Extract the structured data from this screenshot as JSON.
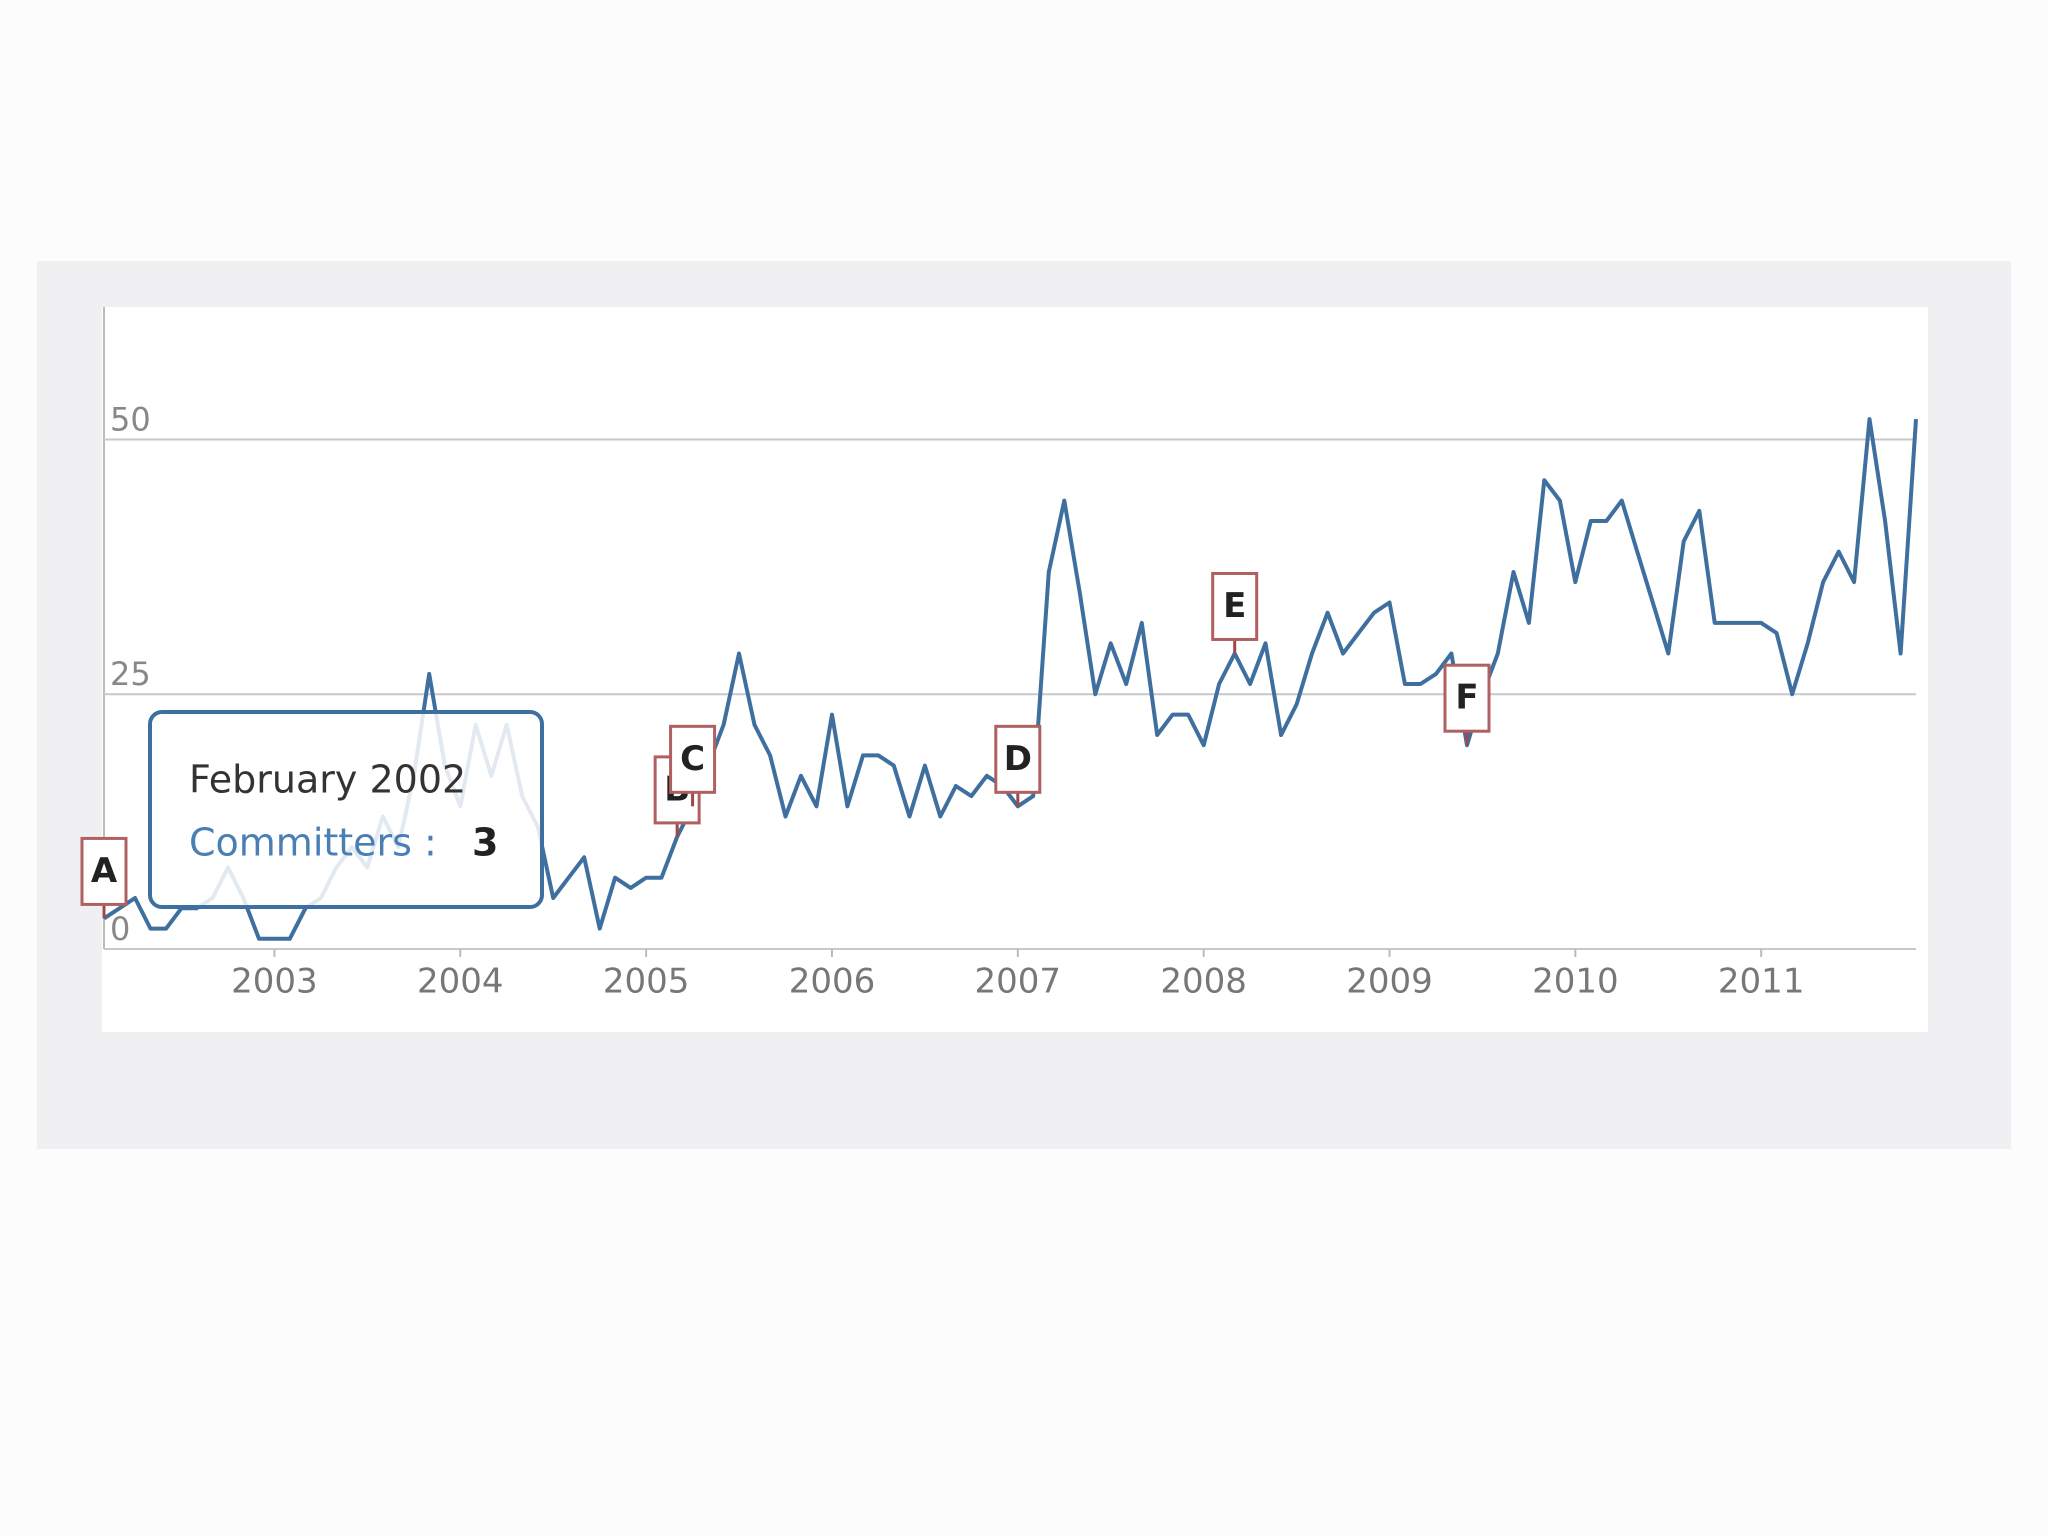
{
  "chart_data": {
    "type": "line",
    "x": [
      2002.083,
      2002.167,
      2002.25,
      2002.333,
      2002.417,
      2002.5,
      2002.583,
      2002.667,
      2002.75,
      2002.833,
      2002.917,
      2003.0,
      2003.083,
      2003.167,
      2003.25,
      2003.333,
      2003.417,
      2003.5,
      2003.583,
      2003.667,
      2003.75,
      2003.833,
      2003.917,
      2004.0,
      2004.083,
      2004.167,
      2004.25,
      2004.333,
      2004.417,
      2004.5,
      2004.583,
      2004.667,
      2004.75,
      2004.833,
      2004.917,
      2005.0,
      2005.083,
      2005.167,
      2005.25,
      2005.333,
      2005.417,
      2005.5,
      2005.583,
      2005.667,
      2005.75,
      2005.833,
      2005.917,
      2006.0,
      2006.083,
      2006.167,
      2006.25,
      2006.333,
      2006.417,
      2006.5,
      2006.583,
      2006.667,
      2006.75,
      2006.833,
      2006.917,
      2007.0,
      2007.083,
      2007.167,
      2007.25,
      2007.333,
      2007.417,
      2007.5,
      2007.583,
      2007.667,
      2007.75,
      2007.833,
      2007.917,
      2008.0,
      2008.083,
      2008.167,
      2008.25,
      2008.333,
      2008.417,
      2008.5,
      2008.583,
      2008.667,
      2008.75,
      2008.833,
      2008.917,
      2009.0,
      2009.083,
      2009.167,
      2009.25,
      2009.333,
      2009.417,
      2009.5,
      2009.583,
      2009.667,
      2009.75,
      2009.833,
      2009.917,
      2010.0,
      2010.083,
      2010.167,
      2010.25,
      2010.333,
      2010.417,
      2010.5,
      2010.583,
      2010.667,
      2010.75,
      2010.833,
      2010.917,
      2011.0,
      2011.083,
      2011.167,
      2011.25,
      2011.333,
      2011.417,
      2011.5,
      2011.583,
      2011.667,
      2011.75,
      2011.833
    ],
    "series": [
      {
        "name": "Committers",
        "color": "#3f6f9f",
        "values": [
          3,
          4,
          5,
          2,
          2,
          4,
          4,
          5,
          8,
          5,
          1,
          1,
          1,
          4,
          5,
          8,
          10,
          8,
          13,
          10,
          17,
          27,
          18,
          14,
          22,
          17,
          22,
          15,
          12,
          5,
          7,
          9,
          2,
          7,
          6,
          7,
          7,
          11,
          14,
          18,
          22,
          29,
          22,
          19,
          13,
          17,
          14,
          23,
          14,
          19,
          19,
          18,
          13,
          18,
          13,
          16,
          15,
          17,
          16,
          14,
          15,
          37,
          44,
          35,
          25,
          30,
          26,
          32,
          21,
          23,
          23,
          20,
          26,
          29,
          26,
          30,
          21,
          24,
          29,
          33,
          29,
          31,
          33,
          34,
          26,
          26,
          27,
          29,
          20,
          25,
          29,
          37,
          32,
          46,
          44,
          36,
          42,
          42,
          44,
          39,
          34,
          29,
          40,
          43,
          32,
          32,
          32,
          32,
          31,
          25,
          30,
          36,
          39,
          36,
          52,
          42,
          29,
          52
        ]
      }
    ],
    "xlim": [
      2002.083,
      2011.833
    ],
    "xticks": [
      2003,
      2004,
      2005,
      2006,
      2007,
      2008,
      2009,
      2010,
      2011
    ],
    "ylim": [
      0,
      63
    ],
    "yticks": [
      0,
      25,
      50
    ],
    "grid": true,
    "annotations": [
      {
        "label": "A",
        "x": 2002.083
      },
      {
        "label": "B",
        "x": 2005.167
      },
      {
        "label": "C",
        "x": 2005.25
      },
      {
        "label": "D",
        "x": 2007.0
      },
      {
        "label": "E",
        "x": 2008.167
      },
      {
        "label": "F",
        "x": 2009.417
      }
    ],
    "tooltip": {
      "title": "February 2002",
      "label": "Committers :",
      "value": 3
    }
  }
}
